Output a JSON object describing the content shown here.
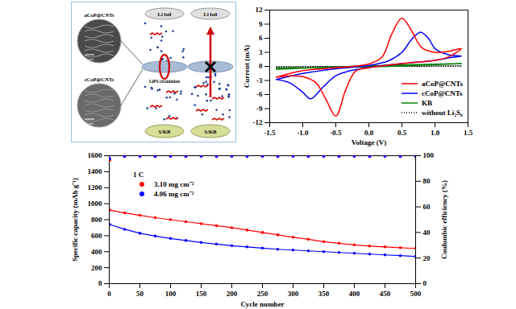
{
  "diagram": {
    "panels": [
      {
        "top": "Li foil",
        "bottom": "S/KB",
        "label": "LiPS circulation"
      },
      {
        "top": "Li foil",
        "bottom": "S/KB"
      }
    ],
    "micrographs": [
      {
        "label": "aCoP@CNTs",
        "scale": "1 μm"
      },
      {
        "label": "cCoP@CNTs",
        "scale": "2 nm"
      }
    ]
  },
  "chart_data": [
    {
      "type": "line",
      "xlabel": "Voltage (V)",
      "ylabel": "Current (mA)",
      "xlim": [
        -1.5,
        1.5
      ],
      "xticks": [
        -1.5,
        {
          "value": -1,
          "label": "-1.0"
        },
        -0.5,
        {
          "value": 0,
          "label": "0.0"
        },
        0.5,
        {
          "value": 1,
          "label": "1.0"
        },
        1.5
      ],
      "ylim": [
        -12,
        12
      ],
      "yticks": [
        -12,
        -9,
        -6,
        -3,
        0,
        3,
        6,
        9,
        12
      ],
      "legend": "lower right",
      "series": [
        {
          "name": "aCoP@CNTs",
          "color": "#ff0000",
          "line_style": "solid",
          "x": [
            -1.4,
            -1.0,
            -0.5,
            0,
            0.2,
            0.35,
            0.5,
            0.65,
            0.8,
            1.0,
            1.2,
            1.4,
            1.2,
            1.0,
            0.5,
            0,
            -0.2,
            -0.35,
            -0.5,
            -0.65,
            -0.8,
            -1.0,
            -1.2,
            -1.4
          ],
          "values": [
            -2.3,
            -0.9,
            -0.3,
            0.5,
            2,
            7,
            10.3,
            7.5,
            4,
            3,
            3.2,
            3.8,
            2.0,
            1.3,
            0.6,
            -0.3,
            -1,
            -5,
            -10.6,
            -7,
            -3.5,
            -2.2,
            -2.0,
            -2.3
          ]
        },
        {
          "name": "cCoP@CNTs",
          "color": "#0000ff",
          "line_style": "solid",
          "x": [
            -1.4,
            -1.0,
            -0.5,
            0,
            0.3,
            0.5,
            0.65,
            0.78,
            0.9,
            1.0,
            1.2,
            1.4,
            1.2,
            1.0,
            0.5,
            0,
            -0.3,
            -0.5,
            -0.7,
            -0.88,
            -1.0,
            -1.2,
            -1.4
          ],
          "values": [
            -2.8,
            -1.5,
            -0.5,
            0.2,
            1.2,
            3,
            5.8,
            7.3,
            6,
            3.8,
            2.5,
            2.2,
            1.8,
            1.3,
            0.6,
            -0.2,
            -1,
            -2,
            -4.5,
            -6.9,
            -5.5,
            -3.5,
            -2.8
          ]
        },
        {
          "name": "KB",
          "color": "#008000",
          "line_style": "solid",
          "x": [
            -1.4,
            0,
            1.4,
            0,
            -1.4
          ],
          "values": [
            -0.6,
            0.1,
            0.6,
            -0.1,
            -0.4
          ]
        },
        {
          "name": "without Li₂S₆",
          "color": "#000000",
          "line_style": "dotted",
          "x": [
            -1.4,
            1.4
          ],
          "values": [
            -0.1,
            0.1
          ]
        }
      ]
    },
    {
      "type": "line",
      "xlabel": "Cycle number",
      "ylabel": "Specific capacity (mAh g⁻¹)",
      "y2label": "Coulombic efficiency (%)",
      "annotations": [
        "1 C"
      ],
      "x": [
        1,
        25,
        50,
        75,
        100,
        125,
        150,
        175,
        200,
        225,
        250,
        275,
        300,
        325,
        350,
        375,
        400,
        425,
        450,
        475,
        500
      ],
      "xlim": [
        0,
        500
      ],
      "xticks": [
        0,
        50,
        100,
        150,
        200,
        250,
        300,
        350,
        400,
        450,
        500
      ],
      "ylim": [
        0,
        1600
      ],
      "yticks": [
        0,
        200,
        400,
        600,
        800,
        1000,
        1200,
        1400,
        1600
      ],
      "y2lim": [
        0,
        100
      ],
      "y2ticks": [
        0,
        20,
        40,
        60,
        80,
        100
      ],
      "legend": "left",
      "series": [
        {
          "name": "3.10 mg cm⁻²",
          "color": "#ff0000",
          "type": "line",
          "marker": "circle",
          "values": [
            920,
            885,
            855,
            825,
            800,
            775,
            750,
            725,
            700,
            670,
            640,
            610,
            580,
            555,
            525,
            505,
            485,
            470,
            460,
            450,
            440
          ]
        },
        {
          "name": "4.06 mg cm⁻²",
          "color": "#0000ff",
          "type": "line",
          "marker": "circle",
          "values": [
            740,
            680,
            630,
            595,
            565,
            540,
            515,
            495,
            475,
            460,
            445,
            430,
            420,
            410,
            400,
            390,
            380,
            370,
            360,
            350,
            340
          ]
        },
        {
          "color": "#ff0000",
          "type": "scatter",
          "marker": "circle",
          "axis": "y2",
          "values": [
            96.5,
            99.6,
            99.7,
            99.6,
            99.7,
            99.6,
            99.7,
            99.6,
            99.7,
            99.6,
            99.7,
            99.6,
            99.7,
            99.6,
            99.7,
            99.6,
            99.7,
            99.6,
            99.7,
            99.6,
            99.7
          ]
        },
        {
          "color": "#0000ff",
          "type": "scatter",
          "marker": "circle",
          "axis": "y2",
          "values": [
            97.8,
            99.4,
            99.5,
            99.4,
            99.5,
            99.4,
            99.5,
            99.4,
            99.5,
            99.4,
            99.5,
            99.4,
            99.5,
            99.4,
            99.5,
            99.4,
            99.5,
            99.4,
            99.5,
            99.4,
            99.5
          ]
        }
      ]
    }
  ]
}
